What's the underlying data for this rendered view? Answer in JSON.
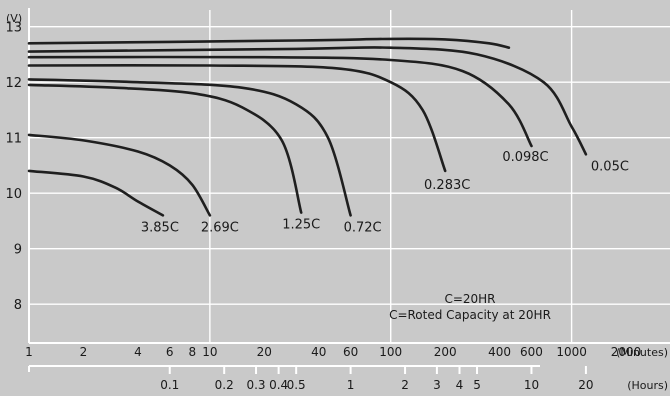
{
  "chart_data": {
    "type": "line",
    "title": "",
    "xlabel": "(Minutes)",
    "x2label": "(Hours)",
    "ylabel": "(V)",
    "x_scale": "log",
    "xlim": [
      1,
      3500
    ],
    "ylim": [
      7.3,
      13.3
    ],
    "y_ticks": [
      "8",
      "9",
      "10",
      "11",
      "12",
      "13"
    ],
    "x_ticks": [
      "1",
      "2",
      "4",
      "6",
      "8",
      "10",
      "20",
      "40",
      "60",
      "100",
      "200",
      "400",
      "600",
      "1000",
      "2000"
    ],
    "x2_ticks": [
      "0.1",
      "0.2",
      "0.3",
      "0.4",
      "0.5",
      "1",
      "2",
      "3",
      "4",
      "5",
      "10",
      "20"
    ],
    "notes": [
      "C=20HR",
      "C=Roted Capacity at 20HR"
    ],
    "series": [
      {
        "name": "3.85C",
        "x": [
          1,
          2,
          3,
          4,
          5.5
        ],
        "y": [
          10.4,
          10.3,
          10.1,
          9.85,
          9.6
        ]
      },
      {
        "name": "2.69C",
        "x": [
          1,
          2,
          4,
          6,
          8,
          10
        ],
        "y": [
          11.05,
          10.95,
          10.75,
          10.5,
          10.15,
          9.6
        ]
      },
      {
        "name": "1.25C",
        "x": [
          1,
          3,
          8,
          15,
          25,
          32
        ],
        "y": [
          11.95,
          11.9,
          11.8,
          11.55,
          10.95,
          9.65
        ]
      },
      {
        "name": "0.72C",
        "x": [
          1,
          4,
          15,
          30,
          45,
          60
        ],
        "y": [
          12.05,
          12.0,
          11.9,
          11.6,
          11.0,
          9.6
        ]
      },
      {
        "name": "0.283C",
        "x": [
          1,
          10,
          50,
          100,
          150,
          200
        ],
        "y": [
          12.3,
          12.3,
          12.25,
          12.0,
          11.5,
          10.4
        ]
      },
      {
        "name": "0.098C",
        "x": [
          1,
          20,
          100,
          250,
          450,
          600
        ],
        "y": [
          12.45,
          12.45,
          12.4,
          12.2,
          11.6,
          10.85
        ]
      },
      {
        "name": "0.05C",
        "x": [
          1,
          30,
          100,
          300,
          700,
          1000,
          1200
        ],
        "y": [
          12.55,
          12.6,
          12.62,
          12.5,
          12.0,
          11.2,
          10.7
        ]
      },
      {
        "name": "",
        "x": [
          1,
          30,
          100,
          200,
          350,
          450
        ],
        "y": [
          12.7,
          12.75,
          12.78,
          12.77,
          12.7,
          12.62
        ]
      }
    ]
  }
}
